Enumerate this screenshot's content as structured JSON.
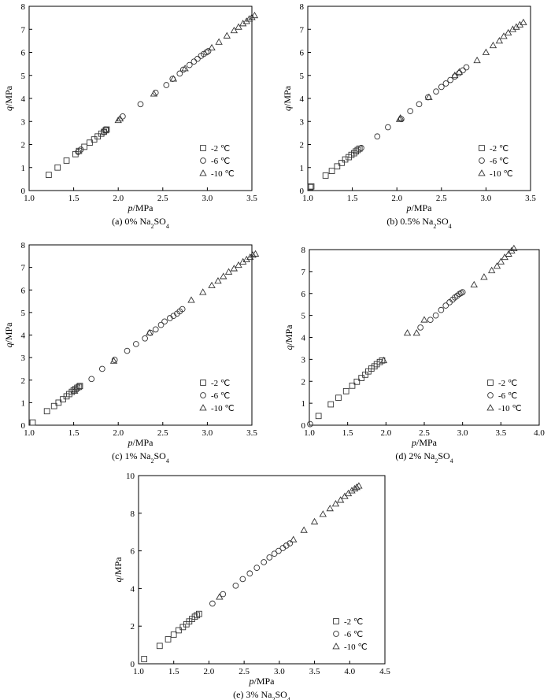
{
  "figure": {
    "marker_colors": {
      "stroke": "#333333",
      "axis": "#000000"
    },
    "series_markers": {
      "-2 ℃": "square",
      "-6 ℃": "circle",
      "-10 ℃": "triangle"
    }
  },
  "chart_data": [
    {
      "type": "scatter",
      "caption": {
        "prefix": "(a) 0% Na",
        "sub1": "2",
        "mid": "SO",
        "sub2": "4"
      },
      "xlabel": "p/MPa",
      "ylabel": "q/MPa",
      "xlim": [
        1.0,
        3.5
      ],
      "ylim": [
        0,
        8
      ],
      "xticks": [
        1.0,
        1.5,
        2.0,
        2.5,
        3.0,
        3.5
      ],
      "xtick_labels": [
        "1.0",
        "1.5",
        "2.0",
        "2.5",
        "3.0",
        "3.5"
      ],
      "yticks": [
        0,
        1,
        2,
        3,
        4,
        5,
        6,
        7,
        8
      ],
      "ytick_labels": [
        "0",
        "1",
        "2",
        "3",
        "4",
        "5",
        "6",
        "7",
        "8"
      ],
      "legend": [
        "-2 ℃",
        "-6 ℃",
        "-10 ℃"
      ],
      "legend_position": "bottom-right",
      "series": [
        {
          "name": "-2 ℃",
          "x": [
            1.22,
            1.32,
            1.42,
            1.52,
            1.56,
            1.62,
            1.68,
            1.73,
            1.77,
            1.81,
            1.84,
            1.86,
            1.87
          ],
          "y": [
            0.68,
            1.0,
            1.3,
            1.58,
            1.72,
            1.9,
            2.08,
            2.22,
            2.35,
            2.47,
            2.55,
            2.62,
            2.65
          ]
        },
        {
          "name": "-6 ℃",
          "x": [
            1.55,
            1.58,
            1.84,
            1.86,
            2.05,
            2.25,
            2.42,
            2.54,
            2.61,
            2.69,
            2.73,
            2.8,
            2.85,
            2.89,
            2.93,
            2.96,
            2.99,
            3.01
          ],
          "y": [
            1.68,
            1.78,
            2.55,
            2.65,
            3.22,
            3.75,
            4.25,
            4.58,
            4.85,
            5.08,
            5.25,
            5.45,
            5.6,
            5.72,
            5.85,
            5.93,
            6.0,
            6.05
          ]
        },
        {
          "name": "-10 ℃",
          "x": [
            2.0,
            2.02,
            2.4,
            2.62,
            2.75,
            3.05,
            3.13,
            3.22,
            3.3,
            3.35,
            3.4,
            3.44,
            3.47,
            3.5,
            3.53
          ],
          "y": [
            3.05,
            3.12,
            4.2,
            4.85,
            5.3,
            6.2,
            6.45,
            6.72,
            6.95,
            7.1,
            7.25,
            7.35,
            7.45,
            7.52,
            7.6
          ]
        }
      ]
    },
    {
      "type": "scatter",
      "caption": {
        "prefix": "(b) 0.5% Na",
        "sub1": "2",
        "mid": "SO",
        "sub2": "4"
      },
      "xlabel": "p/MPa",
      "ylabel": "q/MPa",
      "xlim": [
        1.0,
        3.5
      ],
      "ylim": [
        0,
        8
      ],
      "xticks": [
        1.0,
        1.5,
        2.0,
        2.5,
        3.0,
        3.5
      ],
      "xtick_labels": [
        "1.0",
        "1.5",
        "2.0",
        "2.5",
        "3.0",
        "3.5"
      ],
      "yticks": [
        0,
        1,
        2,
        3,
        4,
        5,
        6,
        7,
        8
      ],
      "ytick_labels": [
        "0",
        "1",
        "2",
        "3",
        "4",
        "5",
        "6",
        "7",
        "8"
      ],
      "legend": [
        "-2 ℃",
        "-6 ℃",
        "-10 ℃"
      ],
      "legend_position": "bottom-right",
      "series": [
        {
          "name": "-2 ℃",
          "x": [
            1.03,
            1.04,
            1.2,
            1.27,
            1.33,
            1.38,
            1.42,
            1.46,
            1.49,
            1.52,
            1.54,
            1.56,
            1.58
          ],
          "y": [
            0.15,
            0.18,
            0.65,
            0.85,
            1.05,
            1.2,
            1.35,
            1.45,
            1.55,
            1.62,
            1.7,
            1.76,
            1.82
          ]
        },
        {
          "name": "-6 ℃",
          "x": [
            1.6,
            1.78,
            1.9,
            2.05,
            2.15,
            2.25,
            2.35,
            2.44,
            2.5,
            2.55,
            2.6,
            2.65,
            2.7,
            2.74,
            2.78
          ],
          "y": [
            1.85,
            2.35,
            2.75,
            3.1,
            3.45,
            3.75,
            4.05,
            4.3,
            4.5,
            4.65,
            4.8,
            4.95,
            5.1,
            5.22,
            5.35
          ]
        },
        {
          "name": "-10 ℃",
          "x": [
            2.03,
            2.04,
            2.36,
            2.65,
            2.7,
            2.9,
            3.0,
            3.08,
            3.15,
            3.2,
            3.25,
            3.3,
            3.34,
            3.38,
            3.42
          ],
          "y": [
            3.1,
            3.15,
            4.05,
            5.0,
            5.15,
            5.65,
            6.0,
            6.3,
            6.5,
            6.7,
            6.85,
            7.0,
            7.1,
            7.2,
            7.3
          ]
        }
      ]
    },
    {
      "type": "scatter",
      "caption": {
        "prefix": "(c) 1% Na",
        "sub1": "2",
        "mid": "SO",
        "sub2": "4"
      },
      "xlabel": "p/MPa",
      "ylabel": "q/MPa",
      "xlim": [
        1.0,
        3.5
      ],
      "ylim": [
        0,
        8
      ],
      "xticks": [
        1.0,
        1.5,
        2.0,
        2.5,
        3.0,
        3.5
      ],
      "xtick_labels": [
        "1.0",
        "1.5",
        "2.0",
        "2.5",
        "3.0",
        "3.5"
      ],
      "yticks": [
        0,
        1,
        2,
        3,
        4,
        5,
        6,
        7,
        8
      ],
      "ytick_labels": [
        "0",
        "1",
        "2",
        "3",
        "4",
        "5",
        "6",
        "7",
        "8"
      ],
      "legend": [
        "-2 ℃",
        "-6 ℃",
        "-10 ℃"
      ],
      "legend_position": "bottom-right",
      "series": [
        {
          "name": "-2 ℃",
          "x": [
            1.04,
            1.2,
            1.28,
            1.33,
            1.38,
            1.42,
            1.45,
            1.48,
            1.5,
            1.52,
            1.54,
            1.56,
            1.57
          ],
          "y": [
            0.12,
            0.62,
            0.85,
            1.0,
            1.15,
            1.28,
            1.38,
            1.48,
            1.55,
            1.6,
            1.66,
            1.7,
            1.74
          ]
        },
        {
          "name": "-6 ℃",
          "x": [
            1.7,
            1.82,
            1.96,
            2.1,
            2.2,
            2.3,
            2.36,
            2.42,
            2.48,
            2.52,
            2.58,
            2.62,
            2.66,
            2.69,
            2.72
          ],
          "y": [
            2.05,
            2.5,
            2.9,
            3.3,
            3.6,
            3.85,
            4.1,
            4.25,
            4.45,
            4.6,
            4.75,
            4.85,
            4.95,
            5.05,
            5.15
          ]
        },
        {
          "name": "-10 ℃",
          "x": [
            1.51,
            1.95,
            2.35,
            2.82,
            2.95,
            3.05,
            3.12,
            3.18,
            3.24,
            3.3,
            3.35,
            3.4,
            3.44,
            3.48,
            3.51,
            3.54
          ],
          "y": [
            1.52,
            2.85,
            4.1,
            5.55,
            5.9,
            6.2,
            6.4,
            6.6,
            6.8,
            6.95,
            7.1,
            7.25,
            7.35,
            7.45,
            7.55,
            7.6
          ]
        }
      ]
    },
    {
      "type": "scatter",
      "caption": {
        "prefix": "(d) 2% Na",
        "sub1": "2",
        "mid": "SO",
        "sub2": "4"
      },
      "xlabel": "p/MPa",
      "ylabel": "q/MPa",
      "xlim": [
        1.0,
        4.0
      ],
      "ylim": [
        0,
        8
      ],
      "xticks": [
        1.0,
        1.5,
        2.0,
        2.5,
        3.0,
        3.5,
        4.0
      ],
      "xtick_labels": [
        "1.0",
        "1.5",
        "2.0",
        "2.5",
        "3.0",
        "3.5",
        "4.0"
      ],
      "yticks": [
        0,
        1,
        2,
        3,
        4,
        5,
        6,
        7,
        8
      ],
      "ytick_labels": [
        "0",
        "1",
        "2",
        "3",
        "4",
        "5",
        "6",
        "7",
        "8"
      ],
      "legend": [
        "-2 ℃",
        "-6 ℃",
        "-10 ℃"
      ],
      "legend_position": "bottom-right",
      "series": [
        {
          "name": "-2 ℃",
          "x": [
            1.12,
            1.28,
            1.38,
            1.48,
            1.56,
            1.62,
            1.68,
            1.73,
            1.77,
            1.81,
            1.85,
            1.88,
            1.92,
            1.95
          ],
          "y": [
            0.42,
            0.95,
            1.25,
            1.55,
            1.8,
            1.98,
            2.15,
            2.3,
            2.45,
            2.58,
            2.68,
            2.78,
            2.88,
            2.95
          ]
        },
        {
          "name": "-6 ℃",
          "x": [
            1.01,
            2.45,
            2.58,
            2.65,
            2.72,
            2.78,
            2.83,
            2.87,
            2.9,
            2.93,
            2.96,
            2.98,
            3.0
          ],
          "y": [
            0.05,
            4.45,
            4.8,
            5.0,
            5.25,
            5.45,
            5.6,
            5.72,
            5.82,
            5.9,
            5.98,
            6.02,
            6.06
          ]
        },
        {
          "name": "-10 ℃",
          "x": [
            1.97,
            2.28,
            2.4,
            2.5,
            3.15,
            3.28,
            3.38,
            3.45,
            3.5,
            3.55,
            3.6,
            3.64,
            3.67
          ],
          "y": [
            2.95,
            4.2,
            4.2,
            4.8,
            6.4,
            6.75,
            7.05,
            7.25,
            7.45,
            7.65,
            7.8,
            7.95,
            8.05
          ]
        }
      ]
    },
    {
      "type": "scatter",
      "caption": {
        "prefix": "(e) 3% Na",
        "sub1": "2",
        "mid": "SO",
        "sub2": "4"
      },
      "xlabel": "p/MPa",
      "ylabel": "q/MPa",
      "xlim": [
        1.0,
        4.5
      ],
      "ylim": [
        0,
        10
      ],
      "xticks": [
        1.0,
        1.5,
        2.0,
        2.5,
        3.0,
        3.5,
        4.0,
        4.5
      ],
      "xtick_labels": [
        "1.0",
        "1.5",
        "2.0",
        "2.5",
        "3.0",
        "3.5",
        "4.0",
        "4.5"
      ],
      "yticks": [
        0,
        2,
        4,
        6,
        8,
        10
      ],
      "ytick_labels": [
        "0",
        "2",
        "4",
        "6",
        "8",
        "10"
      ],
      "legend": [
        "-2 ℃",
        "-6 ℃",
        "-10 ℃"
      ],
      "legend_position": "bottom-right",
      "series": [
        {
          "name": "-2 ℃",
          "x": [
            1.08,
            1.3,
            1.42,
            1.5,
            1.57,
            1.63,
            1.68,
            1.72,
            1.76,
            1.8,
            1.83,
            1.86
          ],
          "y": [
            0.25,
            0.95,
            1.3,
            1.55,
            1.78,
            1.95,
            2.1,
            2.25,
            2.38,
            2.5,
            2.58,
            2.65
          ]
        },
        {
          "name": "-6 ℃",
          "x": [
            2.05,
            2.2,
            2.38,
            2.48,
            2.58,
            2.68,
            2.78,
            2.86,
            2.93,
            2.99,
            3.05,
            3.1,
            3.15
          ],
          "y": [
            3.2,
            3.7,
            4.15,
            4.5,
            4.8,
            5.1,
            5.4,
            5.65,
            5.85,
            6.0,
            6.15,
            6.28,
            6.4
          ]
        },
        {
          "name": "-10 ℃",
          "x": [
            2.15,
            3.2,
            3.35,
            3.5,
            3.62,
            3.72,
            3.8,
            3.87,
            3.93,
            3.98,
            4.03,
            4.07,
            4.1,
            4.13
          ],
          "y": [
            3.55,
            6.6,
            7.1,
            7.55,
            7.95,
            8.25,
            8.5,
            8.7,
            8.9,
            9.05,
            9.2,
            9.3,
            9.38,
            9.45
          ]
        }
      ]
    }
  ]
}
